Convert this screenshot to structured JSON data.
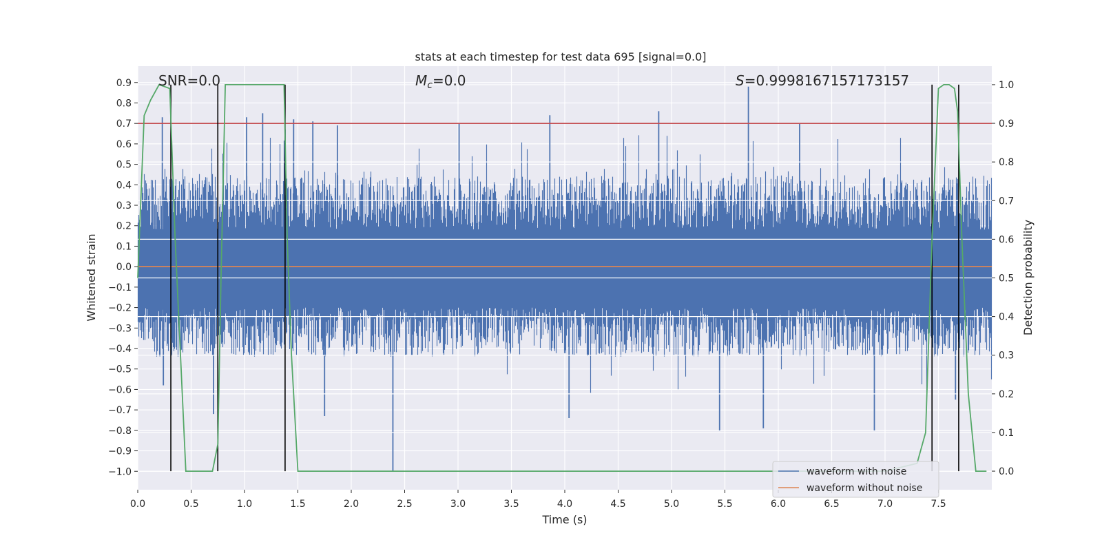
{
  "chart_data": {
    "type": "line",
    "title": "stats at each timestep for test data 695 [signal=0.0]",
    "xlabel": "Time (s)",
    "ylabel": "Whitened strain",
    "y2label": "Detection probability",
    "xlim": [
      0.0,
      8.0
    ],
    "ylim": [
      -1.09,
      0.98
    ],
    "y2lim": [
      -0.048,
      1.048
    ],
    "xticks": [
      "0.0",
      "0.5",
      "1.0",
      "1.5",
      "2.0",
      "2.5",
      "3.0",
      "3.5",
      "4.0",
      "4.5",
      "5.0",
      "5.5",
      "6.0",
      "6.5",
      "7.0",
      "7.5"
    ],
    "yticks": [
      "0.9",
      "0.8",
      "0.7",
      "0.6",
      "0.5",
      "0.4",
      "0.3",
      "0.2",
      "0.1",
      "0.0",
      "−0.1",
      "−0.2",
      "−0.3",
      "−0.4",
      "−0.5",
      "−0.6",
      "−0.7",
      "−0.8",
      "−0.9",
      "−1.0"
    ],
    "y2ticks": [
      "1.0",
      "0.9",
      "0.8",
      "0.7",
      "0.6",
      "0.5",
      "0.4",
      "0.3",
      "0.2",
      "0.1",
      "0.0"
    ],
    "annotations": {
      "snr": "SNR=0.0",
      "mc_symbol": "M",
      "mc_sub": "c",
      "mc_value": "=0.0",
      "s_symbol": "S",
      "s_value": "=0.9998167157173157"
    },
    "threshold": 0.7,
    "colors": {
      "noise": "#4c72b0",
      "clean": "#dd8452",
      "prob": "#55a868",
      "threshold": "#c44e52",
      "markers": "#000000",
      "bg": "#eaeaf2",
      "grid": "#ffffff"
    },
    "series": [
      {
        "name": "waveform with noise",
        "description": "whitened noisy strain, roughly ±0.45 envelope with spikes"
      },
      {
        "name": "waveform without noise",
        "values_constant": 0.0
      },
      {
        "name": "detection probability",
        "axis": "right",
        "x": [
          0.0,
          0.06,
          0.12,
          0.2,
          0.3,
          0.35,
          0.45,
          0.55,
          0.65,
          0.7,
          0.75,
          0.78,
          0.82,
          0.9,
          1.0,
          1.1,
          1.2,
          1.3,
          1.37,
          1.4,
          1.44,
          1.5,
          1.6,
          2.0,
          3.0,
          4.0,
          5.0,
          6.0,
          7.0,
          7.3,
          7.38,
          7.44,
          7.5,
          7.55,
          7.6,
          7.65,
          7.68,
          7.72,
          7.78,
          7.85,
          7.95
        ],
        "values": [
          0.5,
          0.92,
          0.96,
          1.0,
          0.99,
          0.6,
          0.0,
          0.0,
          0.0,
          0.0,
          0.07,
          0.5,
          1.0,
          1.0,
          1.0,
          1.0,
          1.0,
          1.0,
          1.0,
          0.6,
          0.3,
          0.0,
          0.0,
          0.0,
          0.0,
          0.0,
          0.0,
          0.0,
          0.0,
          0.02,
          0.1,
          0.6,
          0.99,
          1.0,
          1.0,
          0.99,
          0.93,
          0.6,
          0.2,
          0.0,
          0.0
        ]
      }
    ],
    "markers": [
      0.31,
      0.75,
      1.38,
      7.44,
      7.69
    ],
    "spikes": [
      {
        "x": 0.23,
        "y": 0.73
      },
      {
        "x": 0.24,
        "y": -0.58
      },
      {
        "x": 0.71,
        "y": -0.72
      },
      {
        "x": 1.02,
        "y": 0.73
      },
      {
        "x": 1.17,
        "y": 0.75
      },
      {
        "x": 1.38,
        "y": 0.67
      },
      {
        "x": 1.46,
        "y": 0.72
      },
      {
        "x": 1.64,
        "y": 0.71
      },
      {
        "x": 1.75,
        "y": -0.73
      },
      {
        "x": 1.87,
        "y": 0.69
      },
      {
        "x": 2.39,
        "y": -1.0
      },
      {
        "x": 3.01,
        "y": 0.7
      },
      {
        "x": 3.86,
        "y": 0.74
      },
      {
        "x": 4.04,
        "y": -0.74
      },
      {
        "x": 4.88,
        "y": 0.76
      },
      {
        "x": 5.45,
        "y": -0.8
      },
      {
        "x": 5.72,
        "y": 0.88
      },
      {
        "x": 5.86,
        "y": -0.79
      },
      {
        "x": 6.2,
        "y": 0.7
      },
      {
        "x": 6.9,
        "y": -0.8
      },
      {
        "x": 7.66,
        "y": -0.65
      }
    ],
    "legend": {
      "placement": "bottom-right",
      "entries": [
        "waveform with noise",
        "waveform without noise"
      ]
    }
  }
}
